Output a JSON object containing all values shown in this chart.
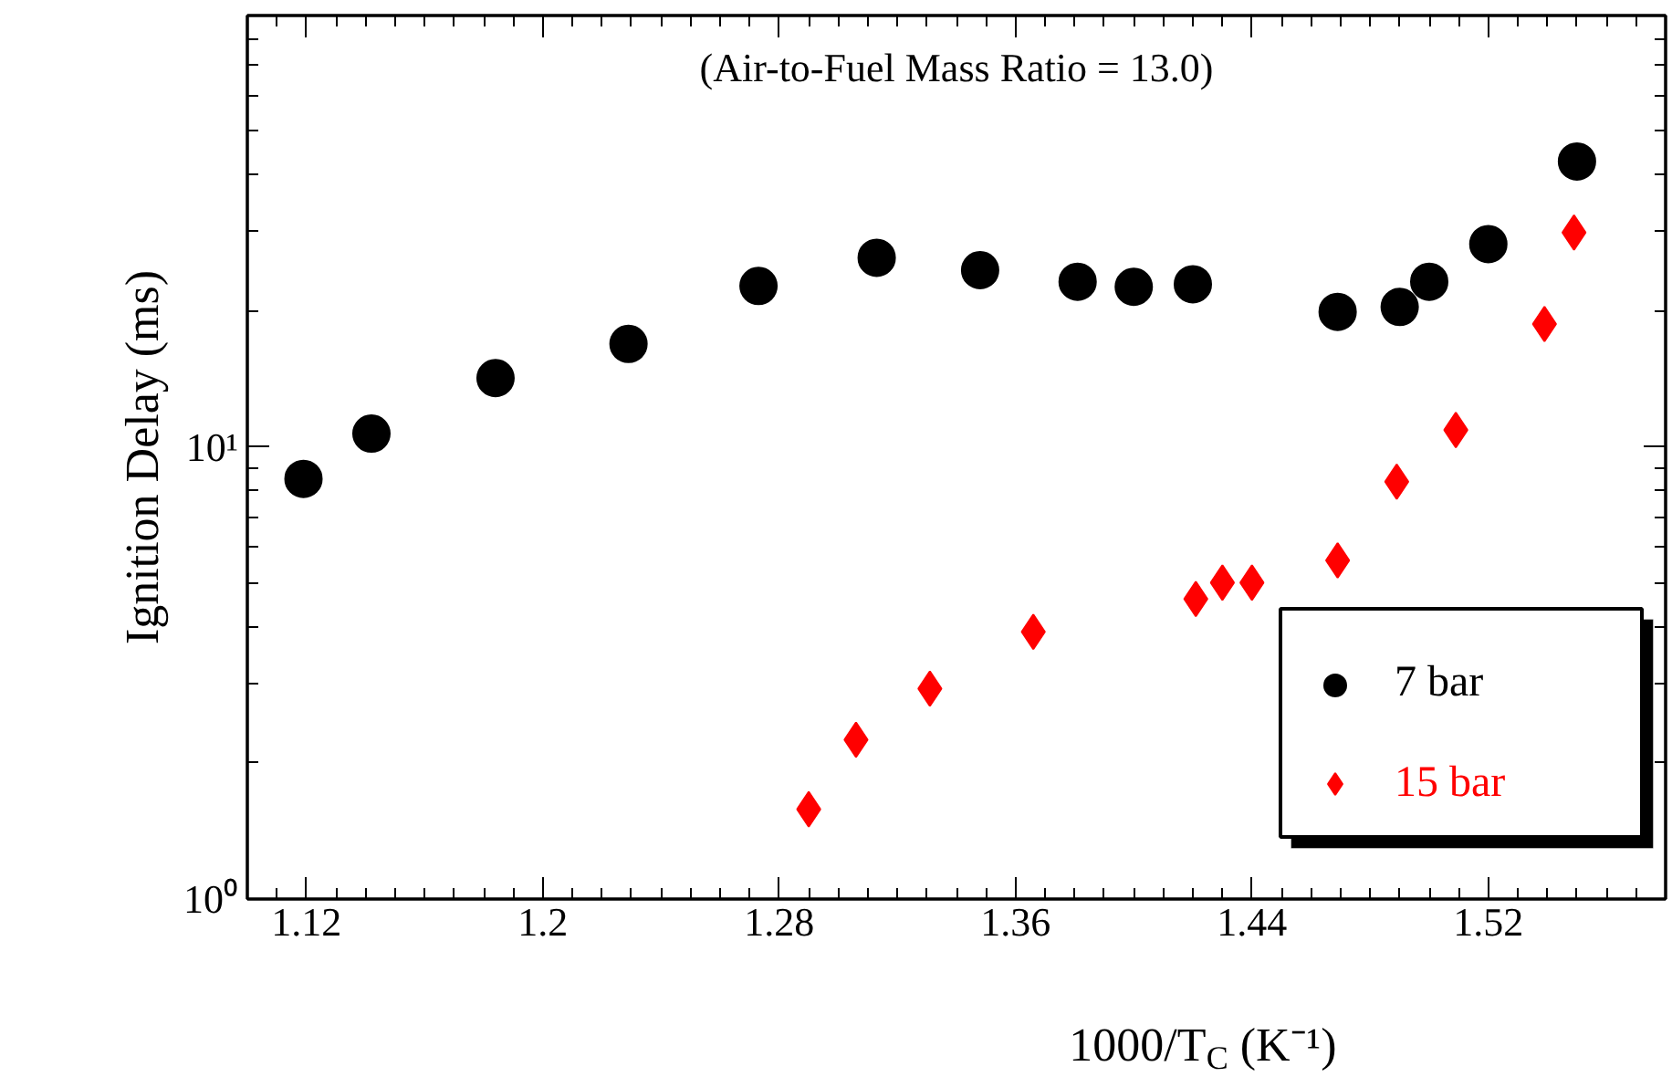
{
  "chart_data": {
    "type": "scatter",
    "xlabel": "1000/T$_{C}$ (K⁻¹)",
    "ylabel": "Ignition Delay (ms)",
    "annotations": [
      "(Air-to-Fuel Mass Ratio = 13.0)"
    ],
    "log": "y",
    "grid": false,
    "legend": "bottom right",
    "xlim": [
      1.1,
      1.58
    ],
    "ylim": [
      1,
      90
    ],
    "xticks": [
      1.12,
      {
        "value": 1.2,
        "label": "1.2"
      },
      1.28,
      1.36,
      1.44,
      1.52
    ],
    "yticks": [
      {
        "value": 1,
        "label": "10⁰"
      },
      {
        "value": 10,
        "label": "10¹"
      }
    ],
    "series": [
      {
        "name": "7 bar",
        "color": "#000000",
        "marker": "circle",
        "x": [
          1.119,
          1.142,
          1.184,
          1.229,
          1.273,
          1.313,
          1.348,
          1.381,
          1.4,
          1.42,
          1.469,
          1.49,
          1.5,
          1.52,
          1.55
        ],
        "values": [
          8.5,
          10.7,
          14.2,
          16.9,
          22.7,
          26.2,
          24.6,
          23.2,
          22.6,
          22.9,
          19.9,
          20.4,
          23.2,
          28.1,
          42.8
        ]
      },
      {
        "name": "15 bar",
        "color": "#ff0000",
        "marker": "diamond",
        "x": [
          1.29,
          1.306,
          1.331,
          1.366,
          1.421,
          1.43,
          1.44,
          1.469,
          1.489,
          1.509,
          1.539,
          1.549
        ],
        "values": [
          1.58,
          2.25,
          2.92,
          3.9,
          4.61,
          5.01,
          5.01,
          5.61,
          8.38,
          10.9,
          18.7,
          29.8
        ]
      }
    ]
  }
}
